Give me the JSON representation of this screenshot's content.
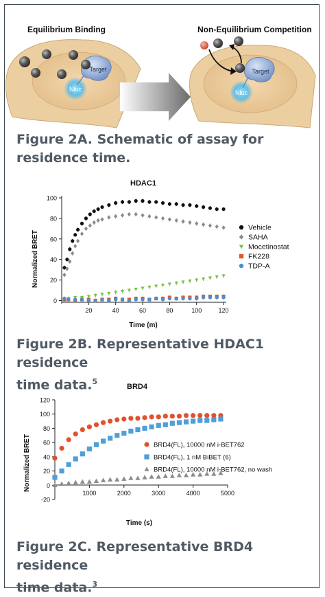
{
  "schematic": {
    "left_title": "Equilibrium Binding",
    "right_title": "Non-Equilibrium Competition",
    "target_label": "Target",
    "nluc_label": "Nluc"
  },
  "captions": {
    "fig2a": "Figure 2A. Schematic of assay for residence time.",
    "fig2a_line1": "Figure 2A. Schematic of assay for",
    "fig2a_line2": "residence time.",
    "fig2b_line1": "Figure 2B. Representative HDAC1 residence",
    "fig2b_line2": "time data.",
    "fig2b_ref": "5",
    "fig2c_line1": "Figure 2C. Representative BRD4 residence",
    "fig2c_line2": "time data.",
    "fig2c_ref": "3"
  },
  "chart_data": [
    {
      "type": "scatter",
      "title": "HDAC1",
      "xlabel": "Time (m)",
      "ylabel": "Normalized BRET",
      "xlim": [
        0,
        122
      ],
      "ylim": [
        -3,
        102
      ],
      "xticks": [
        20,
        40,
        60,
        80,
        100,
        120
      ],
      "yticks": [
        0,
        20,
        40,
        60,
        80,
        100
      ],
      "legend_position": "right",
      "grid": false,
      "series": [
        {
          "name": "Vehicle",
          "color": "#111111",
          "marker": "circle",
          "x": [
            2,
            4,
            6,
            8,
            10,
            12,
            15,
            18,
            21,
            24,
            27,
            30,
            35,
            40,
            45,
            50,
            55,
            60,
            65,
            70,
            75,
            80,
            85,
            90,
            95,
            100,
            105,
            110,
            115,
            120
          ],
          "y": [
            32,
            40,
            50,
            58,
            64,
            69,
            75,
            80,
            84,
            87,
            89,
            91,
            93,
            95,
            96,
            96,
            97,
            97,
            96,
            96,
            95,
            94,
            94,
            93,
            93,
            92,
            91,
            90,
            89,
            89
          ]
        },
        {
          "name": "SAHA",
          "color": "#8a8a8a",
          "marker": "diamond",
          "x": [
            2,
            4,
            6,
            8,
            10,
            12,
            15,
            18,
            21,
            24,
            27,
            30,
            35,
            40,
            45,
            50,
            55,
            60,
            65,
            70,
            75,
            80,
            85,
            90,
            95,
            100,
            105,
            110,
            115,
            120
          ],
          "y": [
            25,
            31,
            38,
            46,
            53,
            58,
            65,
            70,
            73,
            76,
            78,
            79,
            81,
            82,
            83,
            84,
            84,
            83,
            82,
            81,
            80,
            79,
            78,
            77,
            76,
            75,
            74,
            73,
            72,
            71
          ]
        },
        {
          "name": "Mocetinostat",
          "color": "#7dbf44",
          "marker": "triangle-down",
          "x": [
            2,
            5,
            10,
            15,
            20,
            25,
            30,
            35,
            40,
            45,
            50,
            55,
            60,
            65,
            70,
            75,
            80,
            85,
            90,
            95,
            100,
            105,
            110,
            115,
            120
          ],
          "y": [
            2,
            2,
            3,
            3,
            4,
            5,
            6,
            7,
            8,
            9,
            10,
            11,
            12,
            13,
            14,
            15,
            16,
            17,
            18,
            19,
            20,
            21,
            22,
            23,
            24
          ]
        },
        {
          "name": "FK228",
          "color": "#e0592a",
          "marker": "square",
          "x": [
            2,
            5,
            10,
            15,
            20,
            25,
            30,
            35,
            40,
            45,
            50,
            55,
            60,
            65,
            70,
            75,
            80,
            85,
            90,
            95,
            100,
            105,
            110,
            115,
            120
          ],
          "y": [
            1,
            1,
            0,
            1,
            1,
            0,
            1,
            1,
            2,
            1,
            1,
            2,
            2,
            1,
            2,
            2,
            3,
            2,
            3,
            3,
            3,
            4,
            4,
            4,
            4
          ]
        },
        {
          "name": "TDP-A",
          "color": "#4a8fd0",
          "marker": "circle",
          "x": [
            2,
            5,
            10,
            15,
            20,
            25,
            30,
            35,
            40,
            45,
            50,
            55,
            60,
            65,
            70,
            75,
            80,
            85,
            90,
            95,
            100,
            105,
            110,
            115,
            120
          ],
          "y": [
            2,
            1,
            1,
            1,
            0,
            0,
            1,
            0,
            1,
            1,
            0,
            1,
            1,
            1,
            2,
            1,
            2,
            2,
            2,
            2,
            2,
            3,
            3,
            3,
            3
          ]
        }
      ]
    },
    {
      "type": "scatter",
      "title": "BRD4",
      "xlabel": "Time (s)",
      "ylabel": "Normalized BRET",
      "xlim": [
        0,
        5000
      ],
      "ylim": [
        -20,
        120
      ],
      "xticks": [
        1000,
        2000,
        3000,
        4000,
        5000
      ],
      "yticks": [
        -20,
        0,
        20,
        40,
        60,
        80,
        100,
        120
      ],
      "legend_position": "bottom-right",
      "grid": false,
      "series": [
        {
          "name": "BRD4(FL), 10000 nM i-BET762",
          "color": "#e2512d",
          "marker": "circle",
          "x": [
            0,
            200,
            400,
            600,
            800,
            1000,
            1200,
            1400,
            1600,
            1800,
            2000,
            2200,
            2400,
            2600,
            2800,
            3000,
            3200,
            3400,
            3600,
            3800,
            4000,
            4200,
            4400,
            4600,
            4800
          ],
          "y": [
            38,
            52,
            64,
            72,
            78,
            82,
            85,
            88,
            90,
            92,
            93,
            94,
            94,
            95,
            96,
            96,
            97,
            97,
            97,
            98,
            98,
            98,
            98,
            98,
            98
          ]
        },
        {
          "name": "BRD4(FL), 1 nM BiBET (6)",
          "color": "#4f9fd8",
          "marker": "square",
          "x": [
            0,
            200,
            400,
            600,
            800,
            1000,
            1200,
            1400,
            1600,
            1800,
            2000,
            2200,
            2400,
            2600,
            2800,
            3000,
            3200,
            3400,
            3600,
            3800,
            4000,
            4200,
            4400,
            4600,
            4800
          ],
          "y": [
            11,
            20,
            29,
            37,
            44,
            51,
            57,
            62,
            66,
            70,
            73,
            76,
            78,
            80,
            82,
            84,
            85,
            87,
            88,
            89,
            90,
            91,
            91,
            92,
            93
          ]
        },
        {
          "name": "BRD4(FL), 10000 nM i-BET762, no wash",
          "color": "#8c8c8c",
          "marker": "triangle",
          "x": [
            0,
            200,
            400,
            600,
            800,
            1000,
            1200,
            1400,
            1600,
            1800,
            2000,
            2200,
            2400,
            2600,
            2800,
            3000,
            3200,
            3400,
            3600,
            3800,
            4000,
            4200,
            4400,
            4600,
            4800
          ],
          "y": [
            0,
            2,
            3,
            4,
            5,
            5,
            6,
            7,
            8,
            8,
            9,
            10,
            10,
            11,
            12,
            12,
            13,
            13,
            14,
            14,
            15,
            15,
            16,
            16,
            17
          ]
        }
      ]
    }
  ]
}
